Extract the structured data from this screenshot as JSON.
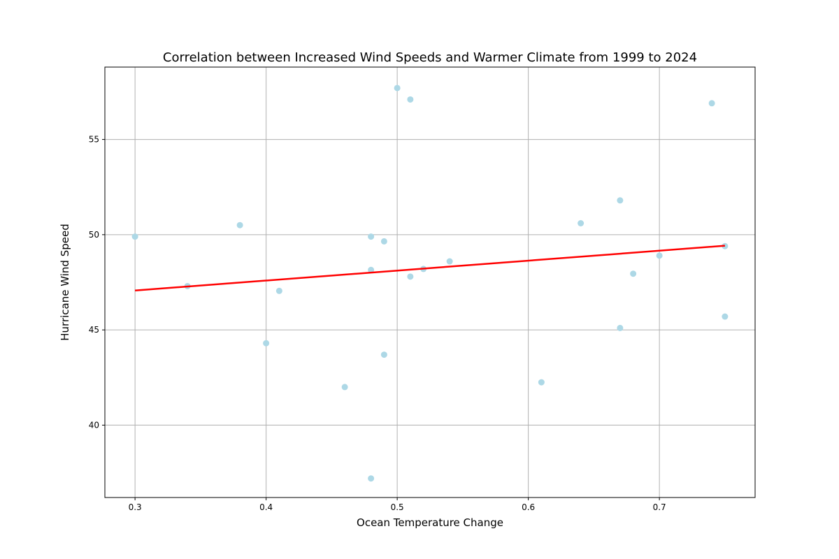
{
  "chart_data": {
    "type": "scatter",
    "title": "Correlation between Increased Wind Speeds and Warmer Climate from 1999 to 2024",
    "xlabel": "Ocean Temperature Change",
    "ylabel": "Hurricane Wind Speed",
    "xlim": [
      0.277,
      0.773
    ],
    "ylim": [
      36.2,
      58.8
    ],
    "xticks": [
      0.3,
      0.4,
      0.5,
      0.6,
      0.7
    ],
    "xtick_labels": [
      "0.3",
      "0.4",
      "0.5",
      "0.6",
      "0.7"
    ],
    "yticks": [
      40,
      45,
      50,
      55
    ],
    "ytick_labels": [
      "40",
      "45",
      "50",
      "55"
    ],
    "grid": true,
    "point_color": "#add8e6",
    "points": [
      {
        "x": 0.3,
        "y": 49.9
      },
      {
        "x": 0.34,
        "y": 47.3
      },
      {
        "x": 0.38,
        "y": 50.5
      },
      {
        "x": 0.4,
        "y": 44.3
      },
      {
        "x": 0.41,
        "y": 47.05
      },
      {
        "x": 0.46,
        "y": 42.0
      },
      {
        "x": 0.48,
        "y": 49.9
      },
      {
        "x": 0.48,
        "y": 48.15
      },
      {
        "x": 0.48,
        "y": 37.2
      },
      {
        "x": 0.49,
        "y": 49.65
      },
      {
        "x": 0.49,
        "y": 43.7
      },
      {
        "x": 0.5,
        "y": 57.7
      },
      {
        "x": 0.51,
        "y": 57.1
      },
      {
        "x": 0.51,
        "y": 47.8
      },
      {
        "x": 0.52,
        "y": 48.2
      },
      {
        "x": 0.54,
        "y": 48.6
      },
      {
        "x": 0.61,
        "y": 42.25
      },
      {
        "x": 0.64,
        "y": 50.6
      },
      {
        "x": 0.67,
        "y": 51.8
      },
      {
        "x": 0.67,
        "y": 45.1
      },
      {
        "x": 0.68,
        "y": 47.95
      },
      {
        "x": 0.7,
        "y": 48.9
      },
      {
        "x": 0.74,
        "y": 56.9
      },
      {
        "x": 0.75,
        "y": 49.4
      },
      {
        "x": 0.75,
        "y": 45.7
      }
    ],
    "trendline": {
      "color": "#ff0000",
      "x": [
        0.3,
        0.75
      ],
      "y": [
        47.07,
        49.42
      ]
    }
  }
}
